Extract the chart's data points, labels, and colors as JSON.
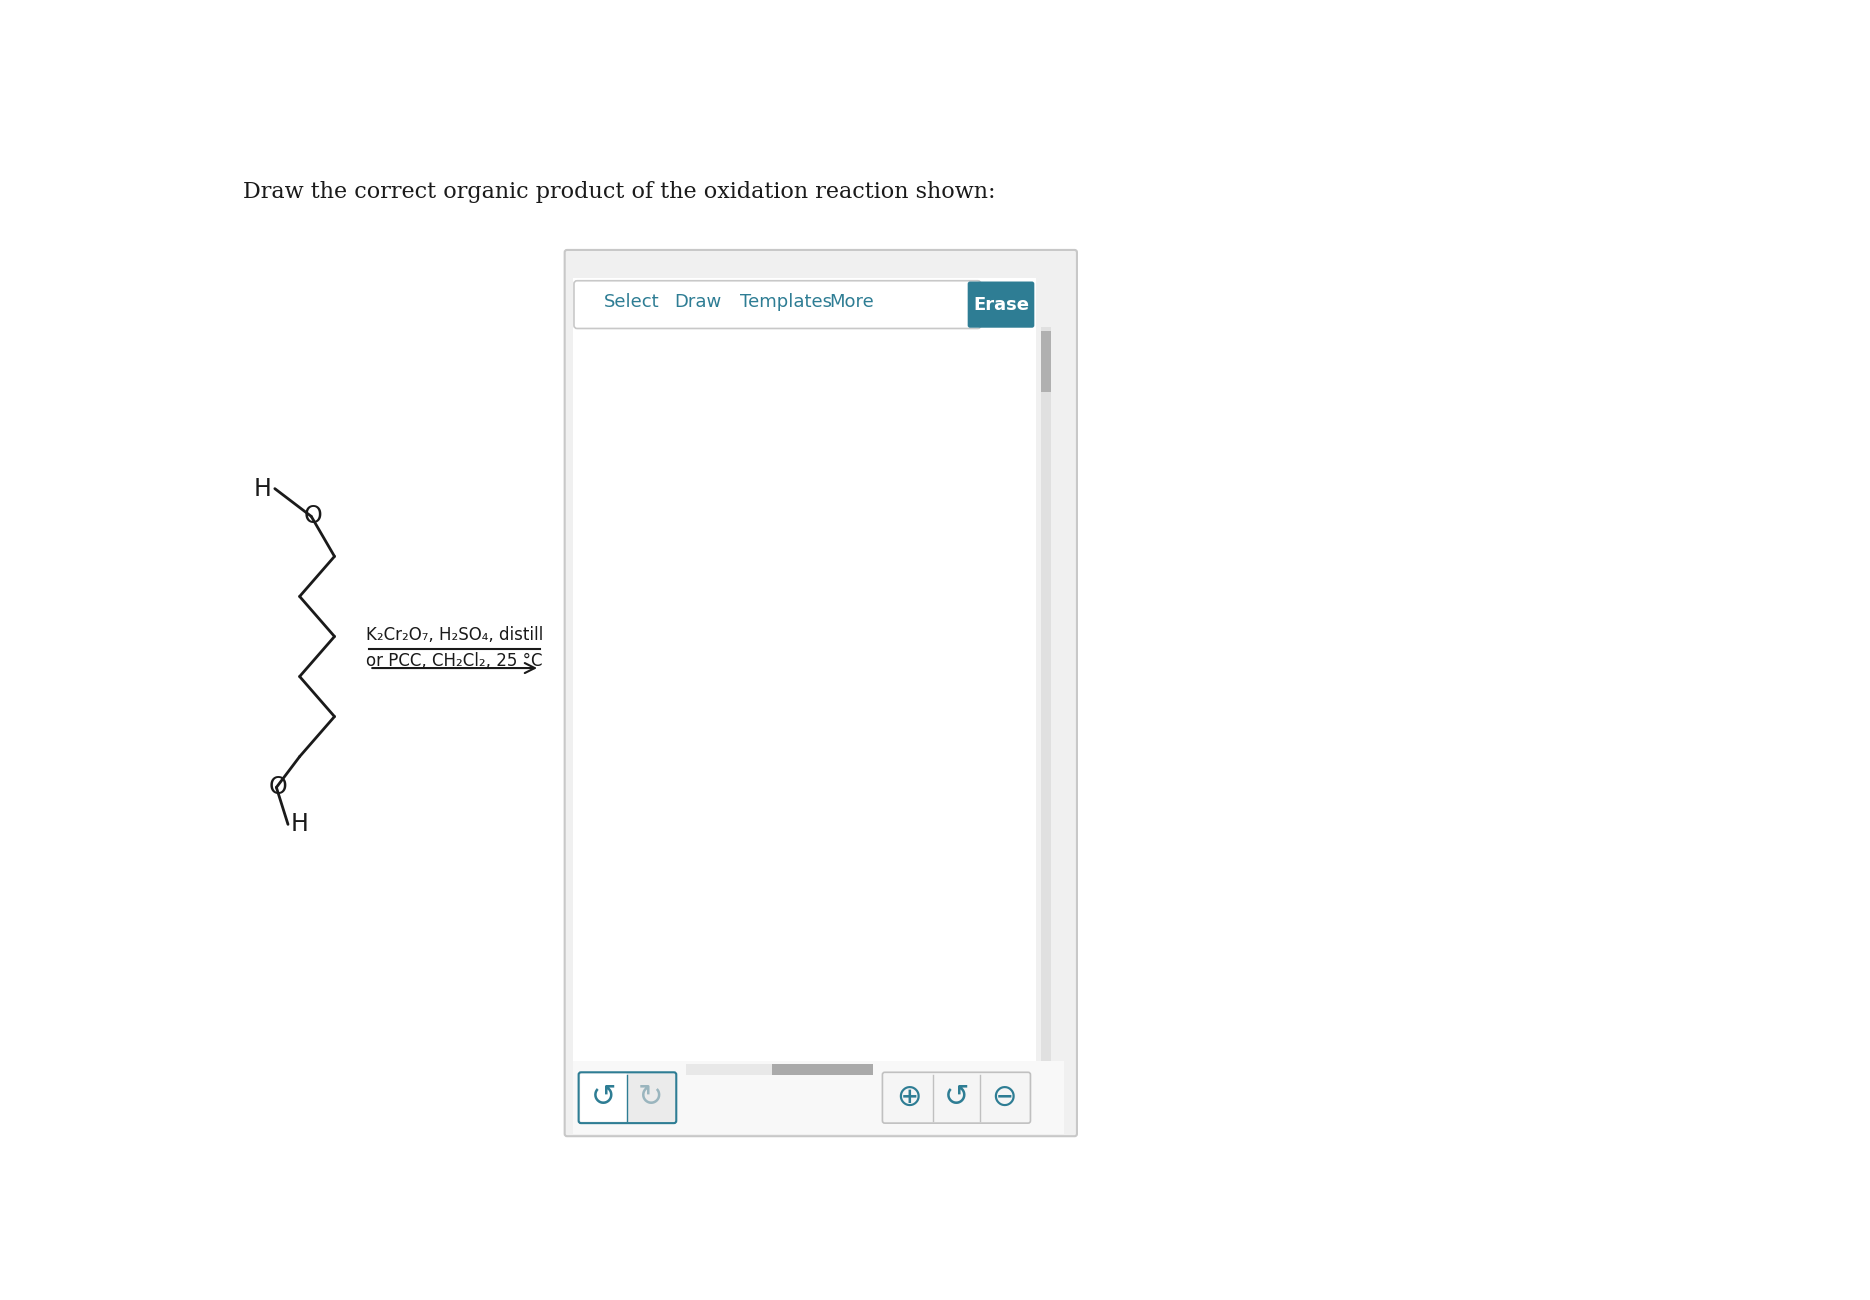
{
  "title": "Draw the correct organic product of the oxidation reaction shown:",
  "title_fontsize": 14,
  "title_color": "#1a1a1a",
  "background_color": "#ffffff",
  "reagent_line1": "K₂Cr₂O₇, H₂SO₄, distill",
  "reagent_line2": "or PCC, CH₂Cl₂, 25 °C",
  "toolbar_items": [
    "Select",
    "Draw",
    "Templates",
    "More"
  ],
  "toolbar_color": "#2e7d94",
  "erase_bg_color": "#2e7d94",
  "panel_border_color": "#c8c8c8",
  "panel_bg": "#f0f0f0",
  "toolbar_box_border": "#c8c8c8",
  "scrollbar_track": "#e0e0e0",
  "scrollbar_thumb": "#b0b0b0",
  "btn_border": "#2e7d94",
  "btn_bg_active": "#ffffff",
  "btn_bg_inactive": "#ebebeb",
  "btn_color_active": "#2e7d94",
  "btn_color_inactive": "#9ab5be",
  "zoom_btn_border": "#c0c0c0",
  "zoom_btn_bg": "#f5f5f5",
  "zoom_btn_color": "#2e7d94",
  "hscroll_track": "#e8e8e8",
  "hscroll_thumb": "#aaaaaa"
}
